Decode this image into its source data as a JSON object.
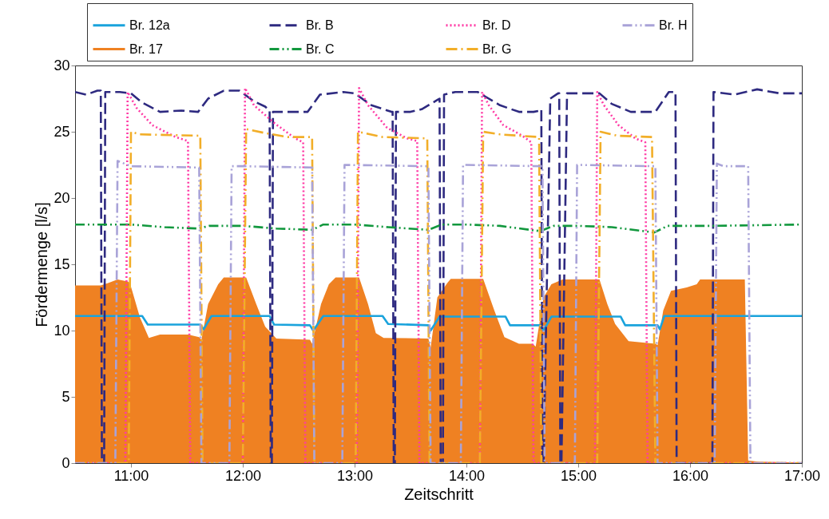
{
  "chart_data": {
    "type": "line",
    "xlabel": "Zeitschritt",
    "ylabel": "Fördermenge [l/s]",
    "xlim": [
      10.5,
      17
    ],
    "xticks": [
      {
        "value": 11,
        "label": "11:00"
      },
      {
        "value": 12,
        "label": "12:00"
      },
      {
        "value": 13,
        "label": "13:00"
      },
      {
        "value": 14,
        "label": "14:00"
      },
      {
        "value": 15,
        "label": "15:00"
      },
      {
        "value": 16,
        "label": "16:00"
      },
      {
        "value": 17,
        "label": "17:00"
      }
    ],
    "ylim": [
      0,
      30
    ],
    "yticks": [
      0,
      5,
      10,
      15,
      20,
      25,
      30
    ],
    "grid": false,
    "legend": "top",
    "series": [
      {
        "name": "Br. 12a",
        "line_style": "solid",
        "color": "#1aa3dc",
        "x": [
          10.5,
          11.1,
          11.15,
          11.62,
          11.65,
          11.72,
          12.24,
          12.28,
          12.6,
          12.63,
          12.72,
          13.25,
          13.3,
          13.66,
          13.68,
          13.76,
          14.35,
          14.39,
          14.66,
          14.69,
          14.76,
          15.38,
          15.42,
          15.71,
          15.73,
          15.77,
          17
        ],
        "values": [
          11.1,
          11.1,
          10.45,
          10.45,
          10.1,
          11.1,
          11.1,
          10.45,
          10.4,
          10.0,
          11.1,
          11.1,
          10.5,
          10.4,
          10.0,
          11.05,
          11.05,
          10.4,
          10.4,
          10.0,
          11.05,
          11.05,
          10.4,
          10.4,
          10.1,
          11.1,
          11.1
        ]
      },
      {
        "name": "Br. 17",
        "type": "area",
        "color": "#ef8122",
        "x": [
          10.5,
          10.73,
          10.8,
          10.88,
          10.97,
          10.99,
          11.08,
          11.16,
          11.26,
          11.51,
          11.61,
          11.63,
          11.69,
          11.78,
          11.83,
          12.03,
          12.12,
          12.2,
          12.3,
          12.6,
          12.62,
          12.7,
          12.77,
          12.83,
          13.04,
          13.12,
          13.19,
          13.26,
          13.66,
          13.68,
          13.74,
          13.83,
          13.86,
          14.15,
          14.25,
          14.34,
          14.47,
          14.59,
          14.62,
          14.69,
          14.76,
          14.86,
          15.19,
          15.26,
          15.33,
          15.45,
          15.69,
          15.71,
          15.76,
          15.83,
          15.97,
          16.06,
          16.09,
          16.49,
          16.52,
          16.61,
          17
        ],
        "values": [
          13.4,
          13.4,
          13.6,
          13.85,
          13.7,
          13.6,
          11.0,
          9.45,
          9.7,
          9.7,
          9.5,
          9.3,
          12.0,
          13.5,
          14.0,
          14.0,
          12.0,
          10.3,
          9.4,
          9.3,
          9.0,
          12.0,
          13.5,
          14.0,
          14.0,
          12.0,
          9.8,
          9.45,
          9.4,
          8.7,
          12.5,
          13.6,
          13.9,
          13.9,
          11.5,
          9.5,
          9.0,
          9.0,
          8.8,
          12.5,
          13.5,
          13.85,
          13.85,
          12.0,
          10.5,
          9.2,
          9.0,
          8.9,
          11.5,
          13.0,
          13.25,
          13.5,
          13.85,
          13.85,
          0.2,
          0.1,
          0.05
        ]
      },
      {
        "name": "Br. B",
        "line_style": "dashed",
        "color": "#2e2a80",
        "x": [
          10.5,
          10.6,
          10.7,
          10.73,
          10.74,
          10.76,
          10.77,
          10.9,
          11.0,
          11.1,
          11.26,
          11.45,
          11.6,
          11.69,
          11.83,
          11.97,
          12.1,
          12.2,
          12.24,
          12.25,
          12.26,
          12.27,
          12.36,
          12.58,
          12.69,
          12.9,
          13.0,
          13.15,
          13.33,
          13.34,
          13.35,
          13.36,
          13.37,
          13.5,
          13.6,
          13.74,
          13.76,
          13.77,
          13.79,
          13.8,
          13.9,
          14.1,
          14.3,
          14.47,
          14.6,
          14.66,
          14.67,
          14.68,
          14.69,
          14.75,
          14.82,
          14.83,
          14.84,
          14.85,
          14.9,
          15.19,
          15.3,
          15.47,
          15.69,
          15.81,
          15.87,
          15.88,
          16.2,
          16.21,
          16.4,
          16.6,
          16.8,
          17
        ],
        "values": [
          28.0,
          27.8,
          28.1,
          28.1,
          0,
          0,
          28.0,
          28.0,
          27.9,
          27.2,
          26.5,
          26.6,
          26.5,
          27.5,
          28.1,
          28.1,
          27.3,
          26.9,
          26.6,
          0,
          0,
          26.5,
          26.5,
          26.5,
          27.8,
          28.0,
          27.9,
          27.0,
          26.5,
          26.5,
          0,
          0,
          26.5,
          26.5,
          26.7,
          27.4,
          27.5,
          0,
          0,
          27.8,
          28.0,
          28.0,
          27.0,
          26.5,
          26.5,
          26.6,
          26.7,
          0,
          0,
          27.5,
          27.9,
          27.9,
          0,
          0,
          27.9,
          27.9,
          27.1,
          26.5,
          26.5,
          28.0,
          28.0,
          0,
          0,
          28.0,
          27.8,
          28.2,
          27.9,
          27.9
        ]
      },
      {
        "name": "Br. C",
        "line_style": "dashdotdot",
        "color": "#12983e",
        "x": [
          10.5,
          11.0,
          11.3,
          11.6,
          11.7,
          12.0,
          12.3,
          12.62,
          12.72,
          13.0,
          13.3,
          13.66,
          13.78,
          14.0,
          14.3,
          14.66,
          14.78,
          15.0,
          15.3,
          15.68,
          15.8,
          16.2,
          17
        ],
        "values": [
          18.0,
          18.0,
          17.8,
          17.7,
          17.9,
          17.9,
          17.7,
          17.6,
          18.0,
          18.0,
          17.8,
          17.6,
          18.0,
          18.0,
          17.9,
          17.5,
          17.9,
          17.9,
          17.8,
          17.4,
          17.9,
          17.9,
          18.0
        ]
      },
      {
        "name": "Br. D",
        "line_style": "dotted",
        "color": "#ff3aa5",
        "x": [
          10.5,
          10.95,
          10.97,
          11.05,
          11.19,
          11.4,
          11.51,
          11.53,
          12.0,
          12.02,
          12.1,
          12.29,
          12.47,
          12.54,
          12.56,
          13.02,
          13.04,
          13.12,
          13.29,
          13.47,
          13.56,
          13.58,
          14.12,
          14.14,
          14.2,
          14.33,
          14.5,
          14.58,
          14.6,
          15.15,
          15.17,
          15.23,
          15.36,
          15.51,
          15.6,
          15.62,
          17
        ],
        "values": [
          0,
          0,
          28.0,
          26.8,
          25.5,
          24.6,
          24.3,
          0,
          0,
          28.3,
          27.0,
          25.6,
          24.5,
          24.2,
          0,
          0,
          28.3,
          27.0,
          25.3,
          24.5,
          24.3,
          0,
          0,
          28.0,
          27.0,
          25.5,
          24.7,
          24.2,
          0,
          0,
          28.0,
          27.0,
          25.5,
          24.5,
          24.2,
          0,
          0
        ]
      },
      {
        "name": "Br. G",
        "line_style": "dashdot",
        "color": "#f2ae28",
        "x": [
          10.5,
          10.98,
          11.0,
          11.08,
          11.62,
          11.64,
          12.0,
          12.03,
          12.2,
          12.4,
          12.62,
          12.64,
          13.01,
          13.03,
          13.25,
          13.65,
          13.67,
          14.12,
          14.15,
          14.3,
          14.65,
          14.67,
          15.17,
          15.2,
          15.35,
          15.66,
          15.69,
          17
        ],
        "values": [
          0,
          0,
          25.0,
          24.8,
          24.7,
          0,
          0,
          25.2,
          24.9,
          24.6,
          24.6,
          0,
          0,
          25.0,
          24.6,
          24.5,
          0,
          0,
          25.0,
          24.8,
          24.6,
          0,
          0,
          25.0,
          24.7,
          24.6,
          0,
          0
        ]
      },
      {
        "name": "Br. H",
        "line_style": "dashdotdot",
        "color": "#a9a3d8",
        "x": [
          10.5,
          10.86,
          10.88,
          11.0,
          11.61,
          11.63,
          11.88,
          11.9,
          12.0,
          12.62,
          12.64,
          12.89,
          12.91,
          13.66,
          13.68,
          13.95,
          13.97,
          14.68,
          14.7,
          14.97,
          14.99,
          15.69,
          15.71,
          16.22,
          16.24,
          16.3,
          16.52,
          16.54,
          17
        ],
        "values": [
          0,
          0,
          22.8,
          22.4,
          22.3,
          0,
          0,
          22.4,
          22.4,
          22.3,
          0,
          0,
          22.5,
          22.4,
          0,
          0,
          22.5,
          22.4,
          0,
          0,
          22.5,
          22.4,
          0,
          0,
          22.6,
          22.4,
          22.4,
          0,
          0
        ]
      }
    ]
  }
}
